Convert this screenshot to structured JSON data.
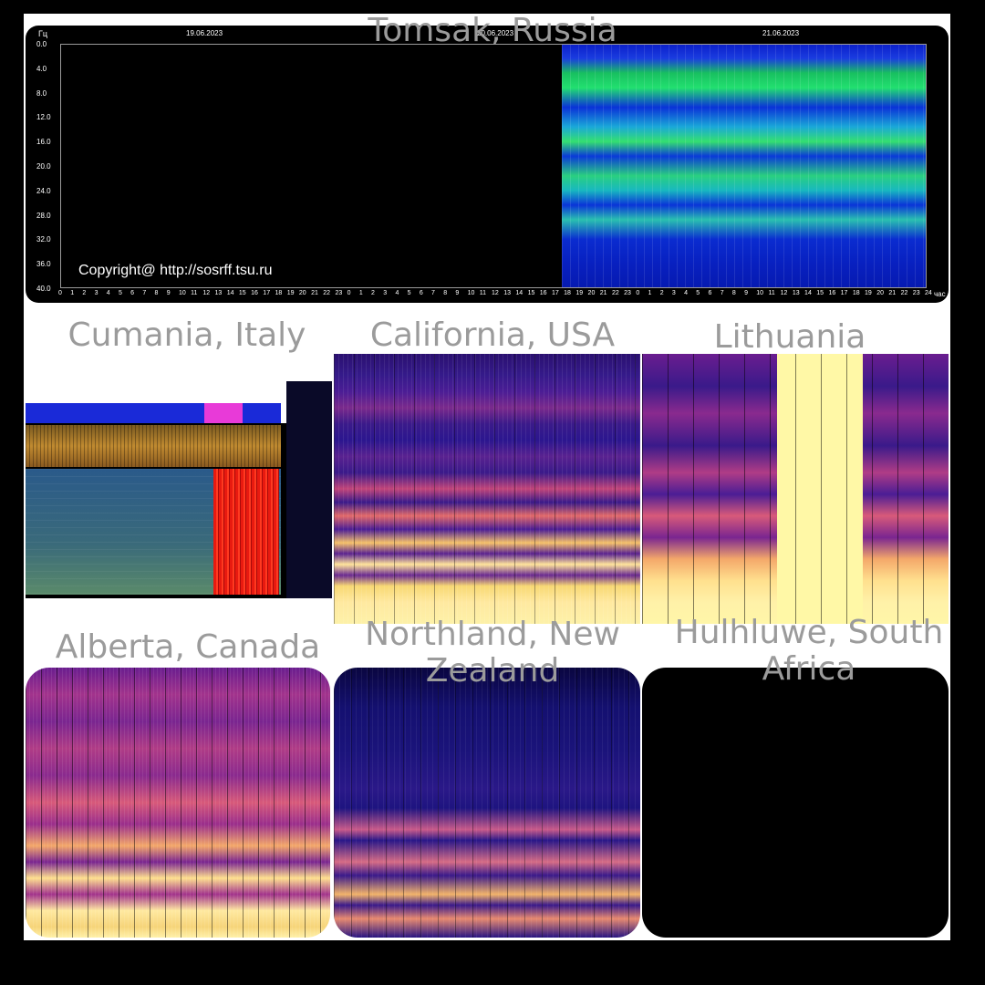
{
  "panels": {
    "tomsk": {
      "title": "Tomsak, Russia",
      "unit_label": "Гц",
      "dates": [
        "19.06.2023",
        "20.06.2023",
        "21.06.2023"
      ],
      "y_ticks": [
        "0.0",
        "4.0",
        "8.0",
        "12.0",
        "16.0",
        "20.0",
        "24.0",
        "28.0",
        "32.0",
        "36.0",
        "40.0"
      ],
      "x_ticks": [
        "0",
        "1",
        "2",
        "3",
        "4",
        "5",
        "6",
        "7",
        "8",
        "9",
        "10",
        "11",
        "12",
        "13",
        "14",
        "15",
        "16",
        "17",
        "18",
        "19",
        "20",
        "21",
        "22",
        "23",
        "0",
        "1",
        "2",
        "3",
        "4",
        "5",
        "6",
        "7",
        "8",
        "9",
        "10",
        "11",
        "12",
        "13",
        "14",
        "15",
        "16",
        "17",
        "18",
        "19",
        "20",
        "21",
        "22",
        "23",
        "0",
        "1",
        "2",
        "3",
        "4",
        "5",
        "6",
        "7",
        "8",
        "9",
        "10",
        "11",
        "12",
        "13",
        "14",
        "15",
        "16",
        "17",
        "18",
        "19",
        "20",
        "21",
        "22",
        "23",
        "24"
      ],
      "x_unit": "час",
      "copyright": "Copyright@ http://sosrff.tsu.ru"
    },
    "cumania": {
      "title": "Cumania, Italy"
    },
    "california": {
      "title": "California, USA"
    },
    "lithuania": {
      "title": "Lithuania"
    },
    "alberta": {
      "title": "Alberta, Canada"
    },
    "northland": {
      "title": "Northland, New Zealand"
    },
    "hulhluwe": {
      "title": "Hulhluwe, South Africa"
    }
  },
  "colors": {
    "frame": "#ffffff",
    "background": "#000000",
    "label": "#9b9b9b"
  }
}
